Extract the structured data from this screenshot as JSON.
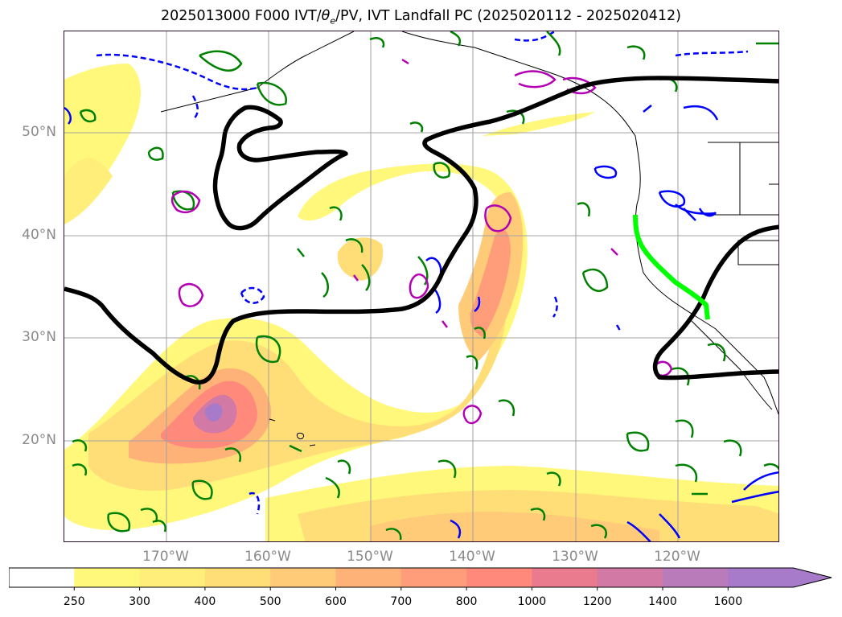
{
  "title": {
    "prefix": "2025013000 F000 IVT/",
    "theta": "θ",
    "theta_sub": "e",
    "suffix": "/PV, IVT Landfall PC (2025020112 - 2025020412)"
  },
  "axes": {
    "lat_labels": [
      "50°N",
      "40°N",
      "30°N",
      "20°N"
    ],
    "lon_labels": [
      "170°W",
      "160°W",
      "150°W",
      "140°W",
      "130°W",
      "120°W"
    ]
  },
  "colorbar": {
    "labels": [
      "250",
      "300",
      "400",
      "500",
      "600",
      "700",
      "800",
      "1000",
      "1200",
      "1400",
      "1600"
    ],
    "colors": [
      "#ffffff",
      "#fff87a",
      "#ffef7a",
      "#ffde78",
      "#ffcb78",
      "#ffb277",
      "#ff9c79",
      "#ff8a7c",
      "#ea7b8e",
      "#d27aa5",
      "#ba7bbb",
      "#a77bc9"
    ],
    "extend": "max"
  },
  "legend_styles": {
    "ivt_fill": "yellow-red-purple filled contours",
    "pv_contour_color": "#008000",
    "theta_e_contour_color": "#0000ff",
    "landfall_line_color": "#00ff00",
    "pc_contour_color": "#000000",
    "extra_contour_color": "#b400b4"
  }
}
